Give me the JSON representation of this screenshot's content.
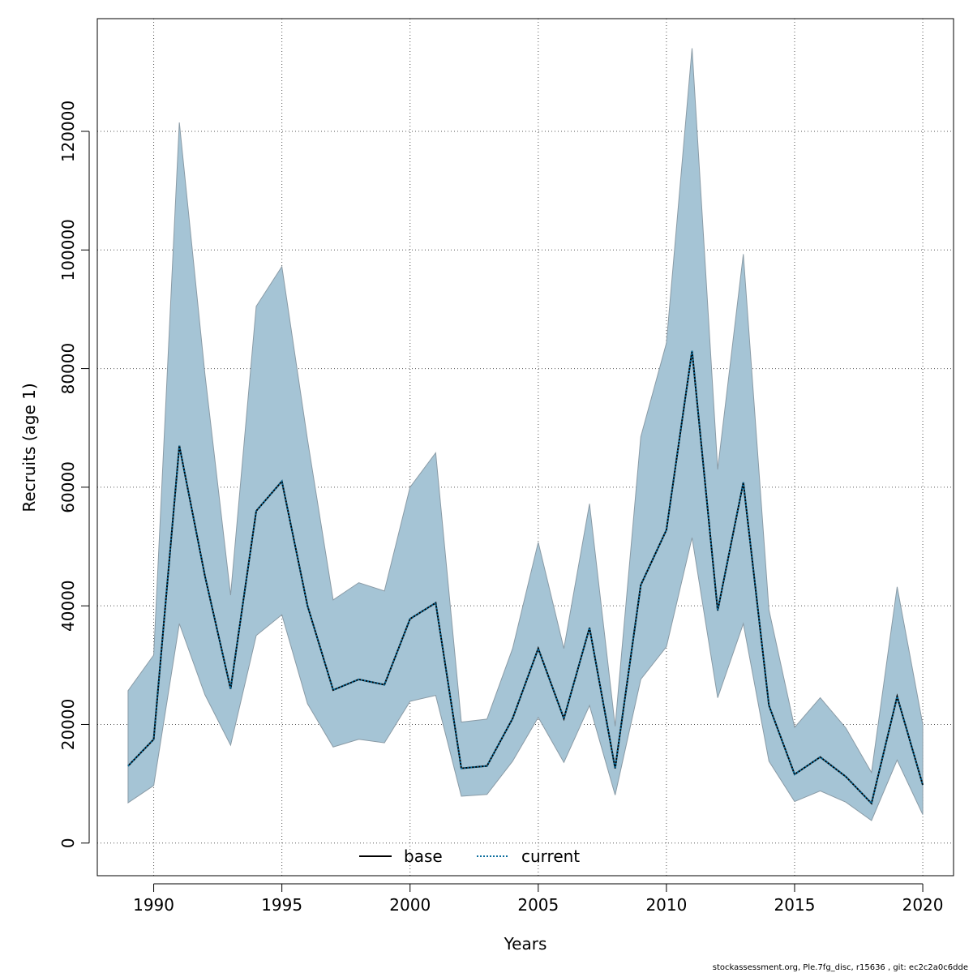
{
  "chart_data": {
    "type": "line",
    "xlabel": "Years",
    "ylabel": "Recruits (age 1)",
    "xlim": [
      1987.8,
      2021.2
    ],
    "ylim": [
      -5500,
      139000
    ],
    "x_ticks": [
      1990,
      1995,
      2000,
      2005,
      2010,
      2015,
      2020
    ],
    "x_tick_labels": [
      "1990",
      "1995",
      "2000",
      "2005",
      "2010",
      "2015",
      "2020"
    ],
    "y_ticks": [
      0,
      20000,
      40000,
      60000,
      80000,
      100000,
      120000
    ],
    "y_tick_labels": [
      "0",
      "20000",
      "40000",
      "60000",
      "80000",
      "100000",
      "120000"
    ],
    "grid": true,
    "legend_position": "bottom-center",
    "x": [
      1989,
      1990,
      1991,
      1992,
      1993,
      1994,
      1995,
      1996,
      1997,
      1998,
      1999,
      2000,
      2001,
      2002,
      2003,
      2004,
      2005,
      2006,
      2007,
      2008,
      2009,
      2010,
      2011,
      2012,
      2013,
      2014,
      2015,
      2016,
      2017,
      2018,
      2019,
      2020
    ],
    "series": [
      {
        "name": "base",
        "style": "solid",
        "color": "#000000",
        "values": [
          13000,
          17500,
          67000,
          45000,
          26000,
          56000,
          61000,
          40000,
          25800,
          27600,
          26700,
          37800,
          40500,
          12600,
          13000,
          21000,
          32800,
          21000,
          36300,
          12600,
          43500,
          52800,
          83000,
          39200,
          60800,
          23200,
          11600,
          14500,
          11200,
          6700,
          24700,
          9800
        ]
      },
      {
        "name": "current",
        "style": "dotted",
        "color": "#0b6e9e",
        "values": [
          13000,
          17500,
          67000,
          45000,
          26000,
          56000,
          61000,
          40000,
          25800,
          27600,
          26700,
          37800,
          40500,
          12600,
          13000,
          21000,
          32800,
          21000,
          36300,
          12600,
          43500,
          52800,
          83000,
          39200,
          60800,
          23200,
          11600,
          14500,
          11200,
          6700,
          24700,
          9800
        ]
      }
    ],
    "confidence_band": {
      "color": "#a5c4d5",
      "edge_color": "#8a9ba6",
      "upper": [
        25700,
        31700,
        121500,
        79000,
        41800,
        90500,
        97200,
        68000,
        41000,
        43900,
        42500,
        60000,
        65800,
        20400,
        20900,
        32800,
        50700,
        32800,
        57200,
        19700,
        68500,
        84300,
        134000,
        63000,
        99300,
        39300,
        19500,
        24500,
        19400,
        11900,
        43200,
        20000
      ],
      "lower": [
        6800,
        9700,
        37000,
        25000,
        16500,
        35000,
        38500,
        23500,
        16200,
        17500,
        16900,
        23900,
        24900,
        7900,
        8200,
        13800,
        21200,
        13600,
        23200,
        8100,
        27600,
        33100,
        51500,
        24500,
        37000,
        13800,
        7000,
        8800,
        6900,
        3800,
        14000,
        4800
      ]
    }
  },
  "footnote": "stockassessment.org, Ple.7fg_disc, r15636 , git: ec2c2a0c6dde"
}
